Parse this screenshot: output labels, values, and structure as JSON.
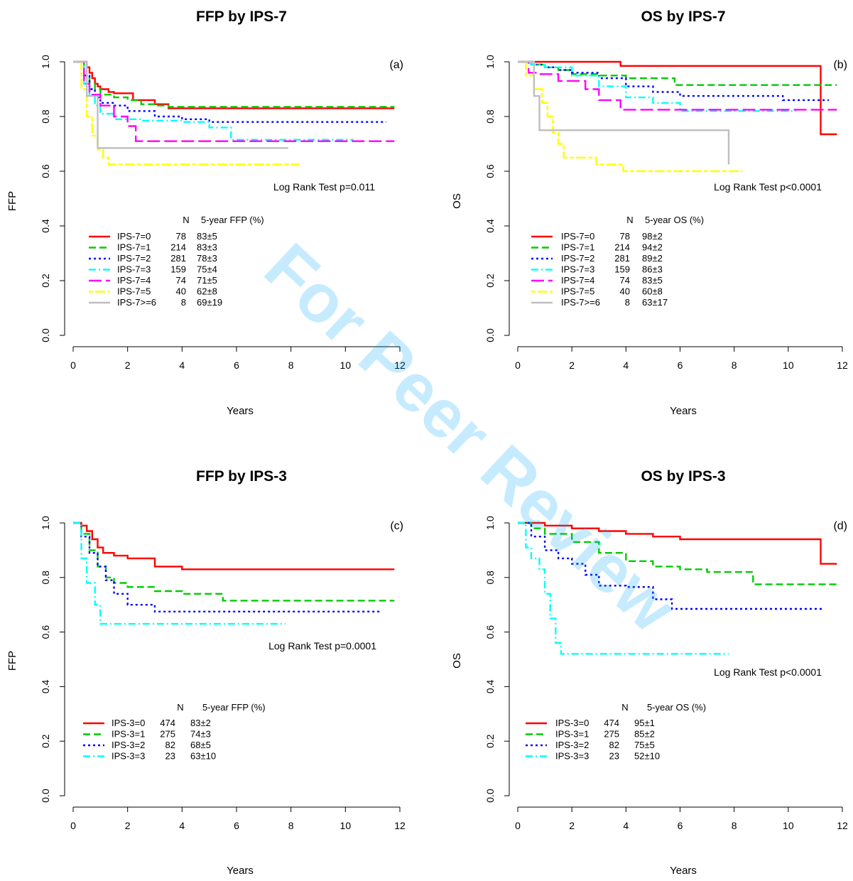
{
  "watermark": "For Peer Review",
  "colors": {
    "red": "#ff0000",
    "green": "#00cc00",
    "blue": "#0000ff",
    "cyan": "#00ffff",
    "magenta": "#ff00ff",
    "yellow": "#ffff00",
    "gray": "#bebebe"
  },
  "chart_data": [
    {
      "type": "line",
      "panel": "(a)",
      "title": "FFP by IPS-7",
      "xlabel": "Years",
      "ylabel": "FFP",
      "xlim": [
        0,
        12
      ],
      "ylim": [
        0,
        1
      ],
      "xticks": [
        "0",
        "2",
        "4",
        "6",
        "8",
        "10",
        "12"
      ],
      "yticks": [
        "0.0",
        "0.2",
        "0.4",
        "0.6",
        "0.8",
        "1.0"
      ],
      "annotation": "Log Rank Test p=0.011",
      "legend_header": [
        "N",
        "5-year FFP (%)"
      ],
      "series": [
        {
          "name": "IPS-7=0",
          "n": "78",
          "estimate": "83±5",
          "color": "red",
          "dash": "solid",
          "x": [
            0,
            0.5,
            0.6,
            0.7,
            0.8,
            0.9,
            1.0,
            1.3,
            1.5,
            2.2,
            3.0,
            3.5,
            11.8
          ],
          "y": [
            1.0,
            0.98,
            0.96,
            0.94,
            0.92,
            0.91,
            0.9,
            0.89,
            0.885,
            0.86,
            0.845,
            0.83,
            0.83
          ]
        },
        {
          "name": "IPS-7=1",
          "n": "214",
          "estimate": "83±3",
          "color": "green",
          "dash": "dashed",
          "x": [
            0,
            0.4,
            0.6,
            0.8,
            1.0,
            1.5,
            2.0,
            2.5,
            3.0,
            3.5,
            11.8
          ],
          "y": [
            1.0,
            0.95,
            0.92,
            0.9,
            0.88,
            0.87,
            0.86,
            0.845,
            0.84,
            0.835,
            0.835
          ]
        },
        {
          "name": "IPS-7=2",
          "n": "281",
          "estimate": "78±3",
          "color": "blue",
          "dash": "dotted",
          "x": [
            0,
            0.4,
            0.6,
            0.8,
            1.0,
            1.5,
            2.0,
            3.0,
            4.0,
            5.0,
            11.5
          ],
          "y": [
            1.0,
            0.95,
            0.9,
            0.87,
            0.85,
            0.84,
            0.82,
            0.8,
            0.79,
            0.78,
            0.78
          ]
        },
        {
          "name": "IPS-7=3",
          "n": "159",
          "estimate": "75±4",
          "color": "cyan",
          "dash": "dashdot",
          "x": [
            0,
            0.4,
            0.6,
            0.8,
            1.0,
            1.5,
            2.5,
            4.0,
            5.0,
            5.8,
            10.3
          ],
          "y": [
            1.0,
            0.92,
            0.88,
            0.84,
            0.81,
            0.79,
            0.785,
            0.78,
            0.76,
            0.715,
            0.715
          ]
        },
        {
          "name": "IPS-7=4",
          "n": "74",
          "estimate": "71±5",
          "color": "magenta",
          "dash": "longdash",
          "x": [
            0,
            0.4,
            0.6,
            1.0,
            1.5,
            2.0,
            2.3,
            11.8
          ],
          "y": [
            1.0,
            0.92,
            0.88,
            0.84,
            0.8,
            0.765,
            0.71,
            0.71
          ]
        },
        {
          "name": "IPS-7=5",
          "n": "40",
          "estimate": "62±8",
          "color": "yellow",
          "dash": "twodash",
          "x": [
            0,
            0.3,
            0.5,
            0.7,
            0.9,
            1.1,
            1.3,
            8.3
          ],
          "y": [
            1.0,
            0.9,
            0.8,
            0.73,
            0.68,
            0.65,
            0.625,
            0.625
          ]
        },
        {
          "name": "IPS-7>=6",
          "n": "8",
          "estimate": "69±19",
          "color": "gray",
          "dash": "solid",
          "x": [
            0,
            0.5,
            0.9,
            7.9
          ],
          "y": [
            1.0,
            0.875,
            0.685,
            0.685
          ]
        }
      ]
    },
    {
      "type": "line",
      "panel": "(b)",
      "title": "OS by IPS-7",
      "xlabel": "Years",
      "ylabel": "OS",
      "xlim": [
        0,
        12
      ],
      "ylim": [
        0,
        1
      ],
      "xticks": [
        "0",
        "2",
        "4",
        "6",
        "8",
        "10",
        "12"
      ],
      "yticks": [
        "0.0",
        "0.2",
        "0.4",
        "0.6",
        "0.8",
        "1.0"
      ],
      "annotation": "Log Rank Test p<0.0001",
      "legend_header": [
        "N",
        "5-year OS (%)"
      ],
      "series": [
        {
          "name": "IPS-7=0",
          "n": "78",
          "estimate": "98±2",
          "color": "red",
          "dash": "solid",
          "x": [
            0,
            3.8,
            11.2,
            11.8
          ],
          "y": [
            1.0,
            0.985,
            0.735,
            0.735
          ]
        },
        {
          "name": "IPS-7=1",
          "n": "214",
          "estimate": "94±2",
          "color": "green",
          "dash": "dashed",
          "x": [
            0,
            0.5,
            1.0,
            1.5,
            2.0,
            3.0,
            4.0,
            5.8,
            11.8
          ],
          "y": [
            1.0,
            0.99,
            0.98,
            0.97,
            0.955,
            0.95,
            0.94,
            0.915,
            0.915
          ]
        },
        {
          "name": "IPS-7=2",
          "n": "281",
          "estimate": "89±2",
          "color": "blue",
          "dash": "dotted",
          "x": [
            0,
            0.5,
            1.0,
            1.5,
            2.0,
            3.0,
            4.0,
            5.0,
            6.0,
            9.8,
            11.5
          ],
          "y": [
            1.0,
            0.99,
            0.98,
            0.97,
            0.96,
            0.94,
            0.91,
            0.89,
            0.875,
            0.86,
            0.86
          ]
        },
        {
          "name": "IPS-7=3",
          "n": "159",
          "estimate": "86±3",
          "color": "cyan",
          "dash": "dashdot",
          "x": [
            0,
            0.5,
            1.0,
            2.0,
            3.0,
            4.0,
            5.0,
            6.0,
            10.3
          ],
          "y": [
            1.0,
            0.99,
            0.98,
            0.95,
            0.91,
            0.87,
            0.85,
            0.82,
            0.82
          ]
        },
        {
          "name": "IPS-7=4",
          "n": "74",
          "estimate": "83±5",
          "color": "magenta",
          "dash": "longdash",
          "x": [
            0,
            0.4,
            0.8,
            1.5,
            2.5,
            3.0,
            3.8,
            11.8
          ],
          "y": [
            1.0,
            0.96,
            0.955,
            0.93,
            0.9,
            0.86,
            0.825,
            0.825
          ]
        },
        {
          "name": "IPS-7=5",
          "n": "40",
          "estimate": "60±8",
          "color": "yellow",
          "dash": "twodash",
          "x": [
            0,
            0.3,
            0.6,
            0.9,
            1.1,
            1.3,
            1.5,
            1.7,
            2.0,
            2.9,
            3.9,
            8.3
          ],
          "y": [
            1.0,
            0.95,
            0.9,
            0.85,
            0.8,
            0.74,
            0.7,
            0.65,
            0.65,
            0.625,
            0.6,
            0.6
          ]
        },
        {
          "name": "IPS-7>=6",
          "n": "8",
          "estimate": "63±17",
          "color": "gray",
          "dash": "solid",
          "x": [
            0,
            0.6,
            0.8,
            7.8
          ],
          "y": [
            1.0,
            0.875,
            0.75,
            0.625
          ]
        }
      ]
    },
    {
      "type": "line",
      "panel": "(c)",
      "title": "FFP by IPS-3",
      "xlabel": "Years",
      "ylabel": "FFP",
      "xlim": [
        0,
        12
      ],
      "ylim": [
        0,
        1
      ],
      "xticks": [
        "0",
        "2",
        "4",
        "6",
        "8",
        "10",
        "12"
      ],
      "yticks": [
        "0.0",
        "0.2",
        "0.4",
        "0.6",
        "0.8",
        "1.0"
      ],
      "annotation": "Log Rank Test p=0.0001",
      "legend_header": [
        "N",
        "5-year FFP (%)"
      ],
      "series": [
        {
          "name": "IPS-3=0",
          "n": "474",
          "estimate": "83±2",
          "color": "red",
          "dash": "solid",
          "x": [
            0,
            0.3,
            0.5,
            0.7,
            0.9,
            1.1,
            1.5,
            2.0,
            3.0,
            4.0,
            11.8
          ],
          "y": [
            1.0,
            0.99,
            0.97,
            0.94,
            0.91,
            0.89,
            0.88,
            0.87,
            0.84,
            0.83,
            0.83
          ]
        },
        {
          "name": "IPS-3=1",
          "n": "275",
          "estimate": "74±3",
          "color": "green",
          "dash": "dashed",
          "x": [
            0,
            0.3,
            0.6,
            0.9,
            1.2,
            1.5,
            2.0,
            3.0,
            4.0,
            5.5,
            11.8
          ],
          "y": [
            1.0,
            0.96,
            0.9,
            0.84,
            0.8,
            0.78,
            0.765,
            0.75,
            0.74,
            0.715,
            0.715
          ]
        },
        {
          "name": "IPS-3=2",
          "n": "82",
          "estimate": "68±5",
          "color": "blue",
          "dash": "dotted",
          "x": [
            0,
            0.3,
            0.6,
            0.9,
            1.2,
            1.5,
            2.0,
            3.0,
            11.3
          ],
          "y": [
            1.0,
            0.95,
            0.89,
            0.84,
            0.79,
            0.74,
            0.7,
            0.675,
            0.675
          ]
        },
        {
          "name": "IPS-3=3",
          "n": "23",
          "estimate": "63±10",
          "color": "cyan",
          "dash": "dashdot",
          "x": [
            0,
            0.3,
            0.5,
            0.8,
            1.0,
            7.8
          ],
          "y": [
            1.0,
            0.87,
            0.78,
            0.7,
            0.63,
            0.63
          ]
        }
      ]
    },
    {
      "type": "line",
      "panel": "(d)",
      "title": "OS by IPS-3",
      "xlabel": "Years",
      "ylabel": "OS",
      "xlim": [
        0,
        12
      ],
      "ylim": [
        0,
        1
      ],
      "xticks": [
        "0",
        "2",
        "4",
        "6",
        "8",
        "10",
        "12"
      ],
      "yticks": [
        "0.0",
        "0.2",
        "0.4",
        "0.6",
        "0.8",
        "1.0"
      ],
      "annotation": "Log Rank Test p<0.0001",
      "legend_header": [
        "N",
        "5-year OS (%)"
      ],
      "series": [
        {
          "name": "IPS-3=0",
          "n": "474",
          "estimate": "95±1",
          "color": "red",
          "dash": "solid",
          "x": [
            0,
            1.0,
            2.0,
            3.0,
            4.0,
            5.0,
            6.0,
            11.2,
            11.8
          ],
          "y": [
            1.0,
            0.99,
            0.98,
            0.97,
            0.96,
            0.95,
            0.94,
            0.85,
            0.85
          ]
        },
        {
          "name": "IPS-3=1",
          "n": "275",
          "estimate": "85±2",
          "color": "green",
          "dash": "dashed",
          "x": [
            0,
            0.5,
            1.0,
            2.0,
            3.0,
            4.0,
            5.0,
            6.0,
            7.0,
            8.7,
            11.8
          ],
          "y": [
            1.0,
            0.98,
            0.96,
            0.93,
            0.89,
            0.86,
            0.84,
            0.83,
            0.82,
            0.775,
            0.775
          ]
        },
        {
          "name": "IPS-3=2",
          "n": "82",
          "estimate": "75±5",
          "color": "blue",
          "dash": "dotted",
          "x": [
            0,
            0.5,
            1.0,
            1.5,
            2.0,
            2.5,
            3.0,
            4.0,
            5.0,
            5.7,
            11.3
          ],
          "y": [
            1.0,
            0.95,
            0.9,
            0.87,
            0.85,
            0.81,
            0.77,
            0.765,
            0.72,
            0.685,
            0.685
          ]
        },
        {
          "name": "IPS-3=3",
          "n": "23",
          "estimate": "52±10",
          "color": "cyan",
          "dash": "dashdot",
          "x": [
            0,
            0.3,
            0.5,
            0.8,
            1.0,
            1.2,
            1.4,
            1.6,
            7.8
          ],
          "y": [
            1.0,
            0.91,
            0.87,
            0.83,
            0.74,
            0.65,
            0.56,
            0.52,
            0.52
          ]
        }
      ]
    }
  ]
}
